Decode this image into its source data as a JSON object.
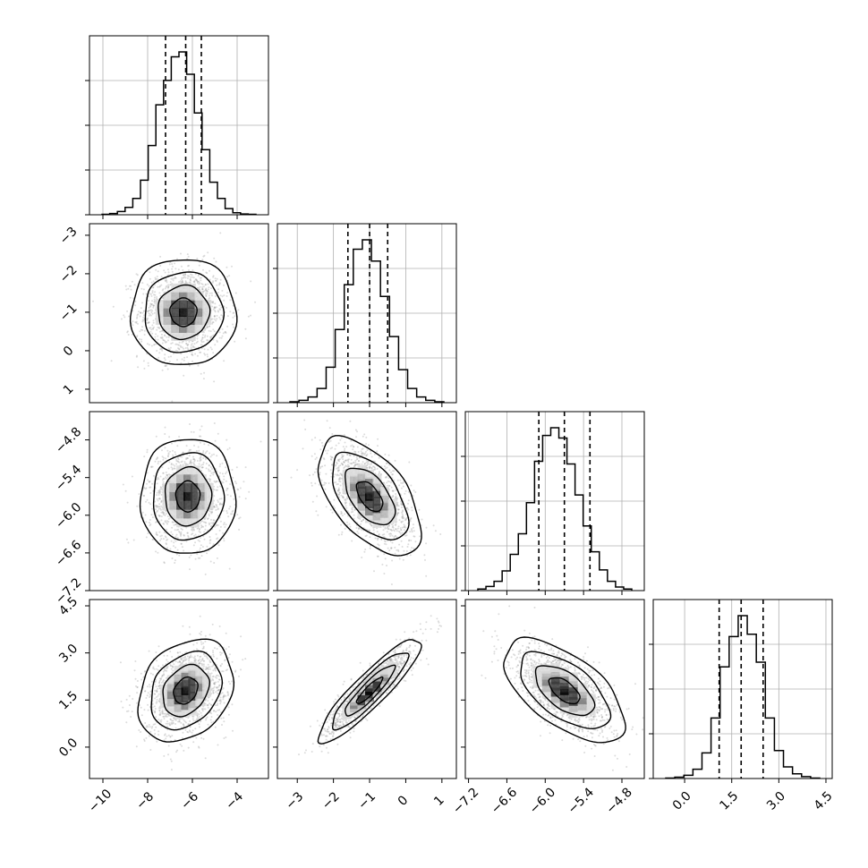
{
  "chart_data": [
    {
      "type": "histogram",
      "panel": "p00",
      "x_range": [
        -10.6,
        -2.6
      ],
      "x_ticks": [
        -10,
        -8,
        -6,
        -4
      ],
      "quantile_lines": [
        -7.2,
        -6.3,
        -5.6
      ],
      "values": [
        1,
        3,
        8,
        18,
        40,
        85,
        170,
        270,
        330,
        388,
        400,
        345,
        250,
        160,
        80,
        40,
        15,
        5,
        2,
        1
      ]
    },
    {
      "type": "scatter-density",
      "panel": "p10",
      "x_range": [
        -10.6,
        -2.6
      ],
      "y_range": [
        -3.35,
        1.3
      ],
      "y_ticks": [
        -3,
        -2,
        -1,
        0,
        1
      ],
      "center": [
        -6.4,
        -1.0
      ],
      "sd": [
        1.0,
        0.6
      ],
      "correlation": 0.0
    },
    {
      "type": "histogram",
      "panel": "p11",
      "x_range": [
        -3.55,
        1.4
      ],
      "x_ticks": [
        -3,
        -2,
        -1,
        0,
        1
      ],
      "quantile_lines": [
        -1.6,
        -1.0,
        -0.5
      ],
      "values": [
        2,
        5,
        12,
        30,
        75,
        155,
        250,
        325,
        345,
        300,
        225,
        140,
        70,
        30,
        12,
        5,
        2
      ]
    },
    {
      "type": "scatter-density",
      "panel": "p20",
      "x_range": [
        -10.6,
        -2.6
      ],
      "y_range": [
        -7.2,
        -4.35
      ],
      "y_ticks": [
        -4.8,
        -5.4,
        -6.0,
        -6.6,
        -7.2
      ],
      "center": [
        -6.2,
        -5.7
      ],
      "sd": [
        0.9,
        0.4
      ],
      "correlation": 0.0
    },
    {
      "type": "scatter-density",
      "panel": "p21",
      "x_range": [
        -3.55,
        1.4
      ],
      "y_range": [
        -7.2,
        -4.35
      ],
      "center": [
        -1.0,
        -5.7
      ],
      "sd": [
        0.6,
        0.4
      ],
      "correlation": -0.55
    },
    {
      "type": "histogram",
      "panel": "p22",
      "x_range": [
        -7.25,
        -4.45
      ],
      "x_ticks": [
        -7.2,
        -6.6,
        -6.0,
        -5.4,
        -4.8
      ],
      "quantile_lines": [
        -6.1,
        -5.7,
        -5.3
      ],
      "values": [
        3,
        8,
        18,
        38,
        70,
        110,
        170,
        250,
        300,
        315,
        295,
        245,
        185,
        125,
        75,
        40,
        18,
        7,
        3
      ]
    },
    {
      "type": "scatter-density",
      "panel": "p30",
      "x_range": [
        -10.6,
        -2.6
      ],
      "y_range": [
        -1.0,
        4.7
      ],
      "y_ticks": [
        4.5,
        3.0,
        1.5,
        0.0
      ],
      "center": [
        -6.3,
        1.8
      ],
      "sd": [
        0.9,
        0.7
      ],
      "correlation": 0.25
    },
    {
      "type": "scatter-density",
      "panel": "p31",
      "x_range": [
        -3.55,
        1.4
      ],
      "y_range": [
        -1.0,
        4.7
      ],
      "center": [
        -1.0,
        1.8
      ],
      "sd": [
        0.6,
        0.7
      ],
      "correlation": 0.9
    },
    {
      "type": "scatter-density",
      "panel": "p32",
      "x_range": [
        -7.25,
        -4.45
      ],
      "y_range": [
        -1.0,
        4.7
      ],
      "center": [
        -5.7,
        1.8
      ],
      "sd": [
        0.4,
        0.7
      ],
      "correlation": -0.6
    },
    {
      "type": "histogram",
      "panel": "p33",
      "x_range": [
        -1.0,
        4.7
      ],
      "x_ticks": [
        0.0,
        1.5,
        3.0,
        4.5
      ],
      "quantile_lines": [
        1.1,
        1.8,
        2.5
      ],
      "values": [
        1,
        3,
        7,
        20,
        55,
        130,
        240,
        305,
        350,
        310,
        250,
        130,
        60,
        25,
        10,
        4,
        1
      ]
    }
  ],
  "labels": {
    "p00_x": [],
    "p10_y": [
      "1",
      "0",
      "−1",
      "−2",
      "−3"
    ],
    "p20_y": [
      "−4.8",
      "−5.4",
      "−6.0",
      "−6.6",
      "−7.2"
    ],
    "p30_y": [
      "4.5",
      "3.0",
      "1.5",
      "0.0"
    ],
    "p30_x": [
      "−10",
      "−8",
      "−6",
      "−4"
    ],
    "p31_x": [
      "−3",
      "−2",
      "−1",
      "0",
      "1"
    ],
    "p32_x": [
      "−7.2",
      "−6.6",
      "−6.0",
      "−5.4",
      "−4.8"
    ],
    "p33_x": [
      "0.0",
      "1.5",
      "3.0",
      "4.5"
    ]
  },
  "colors": {
    "line": "#000000",
    "grid": "#b0b0b0",
    "points": "#9a9a9a"
  }
}
